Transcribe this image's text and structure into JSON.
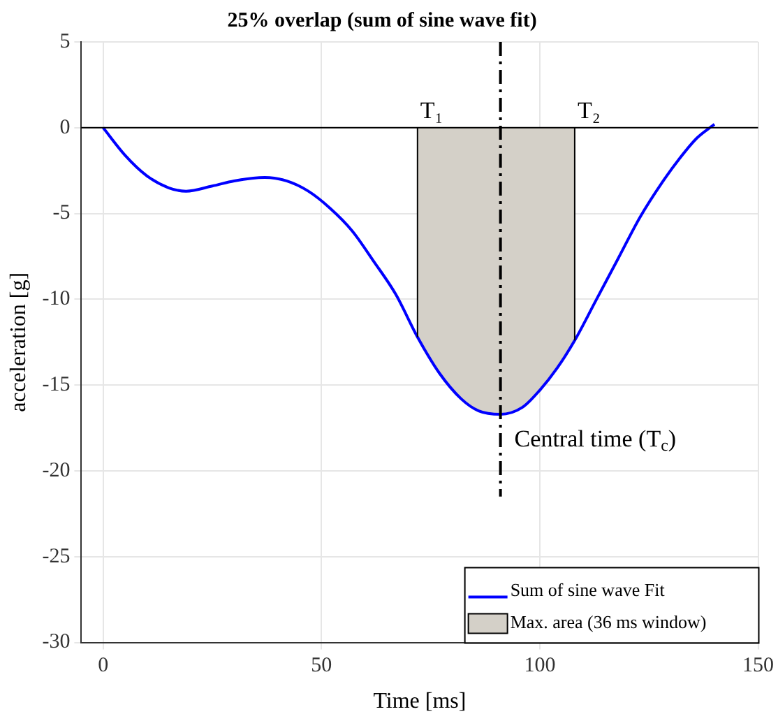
{
  "chart_data": {
    "type": "line",
    "title": "25% overlap (sum of sine wave fit)",
    "xlabel": "Time [ms]",
    "ylabel": "acceleration [g]",
    "xlim": [
      -5,
      150
    ],
    "xticks": [
      0,
      50,
      100,
      150
    ],
    "ylim": [
      -30,
      5
    ],
    "yticks": [
      -30,
      -25,
      -20,
      -15,
      -10,
      -5,
      0,
      5
    ],
    "grid": true,
    "legend": "bottom right",
    "series": [
      {
        "name": "Sum of sine wave Fit",
        "color": "#0000ff",
        "type": "line",
        "x": [
          0,
          5,
          10,
          15,
          19,
          25,
          30,
          37,
          42,
          47,
          52,
          57,
          62,
          67,
          72,
          77,
          82,
          86,
          91,
          96,
          100,
          104,
          108,
          113,
          118,
          123,
          128,
          132,
          136,
          140
        ],
        "values": [
          0,
          -1.6,
          -2.8,
          -3.5,
          -3.7,
          -3.4,
          -3.1,
          -2.9,
          -3.1,
          -3.7,
          -4.7,
          -6.0,
          -7.8,
          -9.7,
          -12.2,
          -14.3,
          -15.8,
          -16.5,
          -16.7,
          -16.3,
          -15.3,
          -14.0,
          -12.4,
          -10.0,
          -7.6,
          -5.2,
          -3.2,
          -1.8,
          -0.6,
          0.2
        ]
      },
      {
        "name": "Max. area (36 ms window)",
        "color": "#d4d0c8",
        "type": "area",
        "x": [
          72,
          77,
          82,
          86,
          91,
          96,
          100,
          104,
          108
        ],
        "values": [
          -12.2,
          -14.3,
          -15.8,
          -16.5,
          -16.7,
          -16.3,
          -15.3,
          -14.0,
          -12.4
        ]
      }
    ],
    "ref_lines": [
      {
        "axis": "y",
        "value": 0,
        "color": "#000000",
        "line_style": "solid"
      },
      {
        "axis": "x",
        "value": 91,
        "label": "Central time (T$_{c}$)",
        "color": "#000000",
        "line_style": "dashdot"
      }
    ],
    "annotations": [
      {
        "text": "T₁",
        "x": 72,
        "y": 0
      },
      {
        "text": "T₂",
        "x": 108,
        "y": 0
      }
    ]
  }
}
